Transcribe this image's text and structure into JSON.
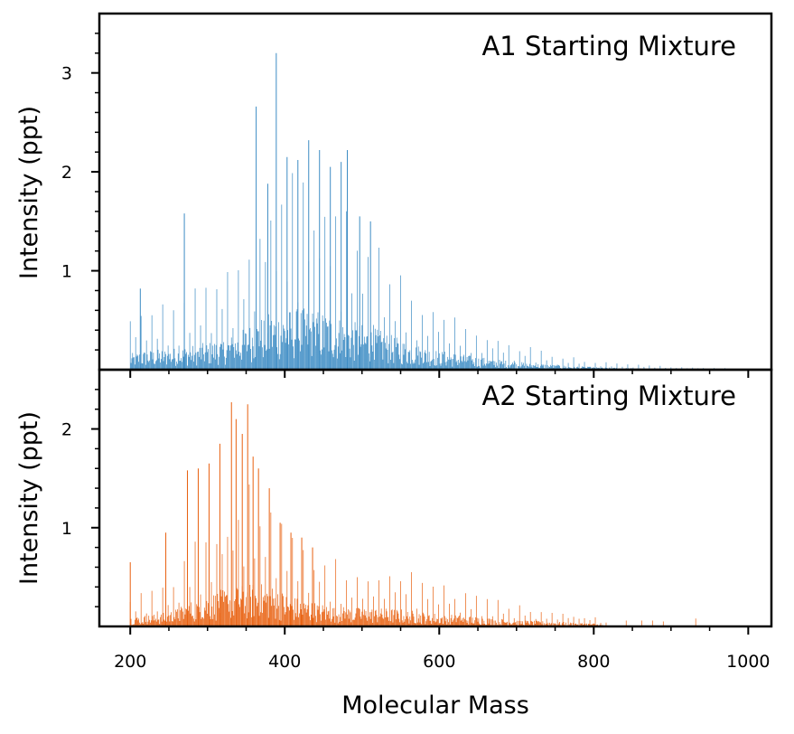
{
  "chart_data": [
    {
      "type": "bar",
      "panel": "top",
      "annotation": "A1 Starting Mixture",
      "ylabel": "Intensity (ppt)",
      "xlabel": "",
      "color": "#3d8cc4",
      "xlim": [
        160,
        1030
      ],
      "ylim": [
        0,
        3.6
      ],
      "yticks": [
        1,
        2,
        3
      ],
      "xticks": [],
      "envelope": {
        "x": [
          200,
          220,
          250,
          280,
          300,
          320,
          340,
          360,
          380,
          400,
          420,
          440,
          460,
          480,
          500,
          520,
          540,
          560,
          580,
          600,
          650,
          700,
          750,
          800,
          850,
          900,
          950,
          980
        ],
        "peak": [
          0.5,
          0.6,
          0.65,
          0.75,
          0.85,
          0.95,
          1.15,
          1.5,
          1.75,
          1.85,
          1.9,
          1.85,
          1.75,
          1.55,
          1.4,
          1.25,
          1.05,
          0.85,
          0.72,
          0.6,
          0.4,
          0.25,
          0.15,
          0.08,
          0.05,
          0.03,
          0.02,
          0.015
        ]
      },
      "spikes": [
        {
          "x": 213,
          "y": 0.82
        },
        {
          "x": 270,
          "y": 1.58
        },
        {
          "x": 363,
          "y": 2.66
        },
        {
          "x": 378,
          "y": 1.88
        },
        {
          "x": 389,
          "y": 3.2
        },
        {
          "x": 403,
          "y": 2.15
        },
        {
          "x": 417,
          "y": 2.12
        },
        {
          "x": 431,
          "y": 2.32
        },
        {
          "x": 445,
          "y": 2.22
        },
        {
          "x": 459,
          "y": 2.05
        },
        {
          "x": 473,
          "y": 2.1
        },
        {
          "x": 481,
          "y": 2.22
        },
        {
          "x": 497,
          "y": 1.55
        },
        {
          "x": 511,
          "y": 1.5
        }
      ]
    },
    {
      "type": "bar",
      "panel": "bottom",
      "annotation": "A2 Starting Mixture",
      "ylabel": "Intensity (ppt)",
      "xlabel": "Molecular Mass",
      "color": "#e8600f",
      "xlim": [
        160,
        1030
      ],
      "ylim": [
        0,
        2.6
      ],
      "yticks": [
        1,
        2
      ],
      "xticks": [
        200,
        400,
        600,
        800,
        1000
      ],
      "envelope": {
        "x": [
          200,
          220,
          240,
          260,
          280,
          300,
          320,
          340,
          360,
          380,
          400,
          420,
          440,
          460,
          480,
          500,
          520,
          540,
          560,
          580,
          600,
          650,
          700,
          750,
          800,
          820
        ],
        "peak": [
          0.3,
          0.35,
          0.4,
          0.55,
          0.8,
          1.0,
          1.15,
          1.25,
          1.35,
          1.3,
          1.05,
          0.85,
          0.75,
          0.65,
          0.6,
          0.58,
          0.57,
          0.56,
          0.52,
          0.45,
          0.4,
          0.3,
          0.2,
          0.15,
          0.1,
          0.02
        ]
      },
      "spikes": [
        {
          "x": 200,
          "y": 0.65
        },
        {
          "x": 246,
          "y": 0.95
        },
        {
          "x": 274,
          "y": 1.58
        },
        {
          "x": 288,
          "y": 1.6
        },
        {
          "x": 302,
          "y": 1.65
        },
        {
          "x": 316,
          "y": 1.85
        },
        {
          "x": 331,
          "y": 2.27
        },
        {
          "x": 337,
          "y": 2.1
        },
        {
          "x": 345,
          "y": 1.95
        },
        {
          "x": 352,
          "y": 2.25
        },
        {
          "x": 359,
          "y": 1.72
        },
        {
          "x": 366,
          "y": 1.6
        },
        {
          "x": 380,
          "y": 1.4
        },
        {
          "x": 394,
          "y": 1.05
        },
        {
          "x": 408,
          "y": 0.95
        },
        {
          "x": 422,
          "y": 0.9
        },
        {
          "x": 436,
          "y": 0.8
        }
      ],
      "outliers": [
        {
          "x": 842,
          "y": 0.06
        },
        {
          "x": 862,
          "y": 0.06
        },
        {
          "x": 876,
          "y": 0.06
        },
        {
          "x": 890,
          "y": 0.05
        },
        {
          "x": 932,
          "y": 0.08
        }
      ]
    }
  ]
}
